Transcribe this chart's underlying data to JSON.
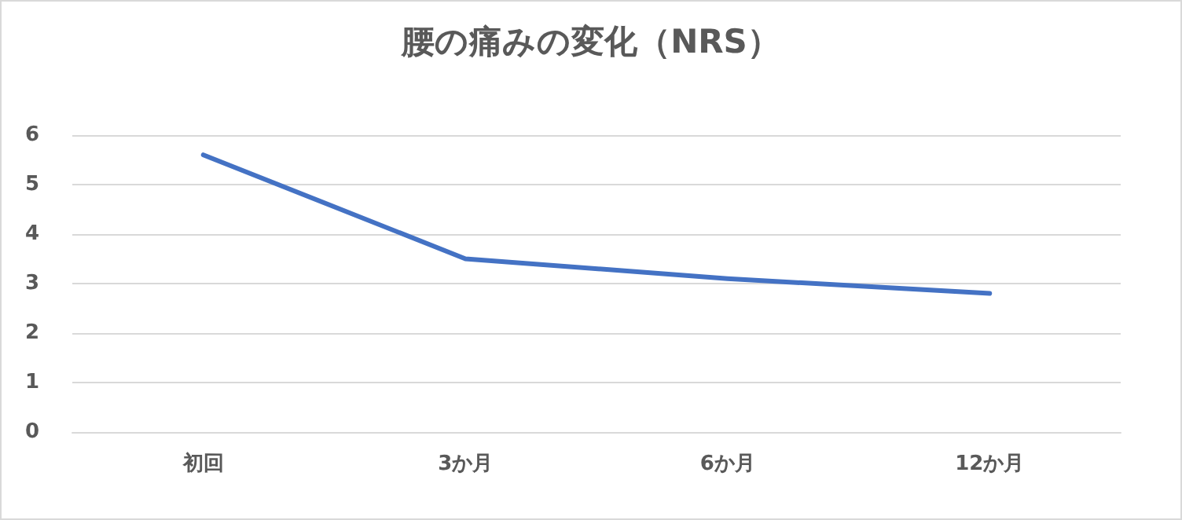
{
  "chart_data": {
    "type": "line",
    "title": "腰の痛みの変化（NRS）",
    "categories": [
      "初回",
      "3か月",
      "6か月",
      "12か月"
    ],
    "series": [
      {
        "color": "#4472c4",
        "values": [
          5.6,
          3.5,
          3.1,
          2.8
        ]
      }
    ],
    "ylim": [
      0,
      6
    ],
    "yticks": [
      0,
      1,
      2,
      3,
      4,
      5,
      6
    ],
    "grid": "y",
    "marker": "none",
    "line_style": "solid"
  }
}
